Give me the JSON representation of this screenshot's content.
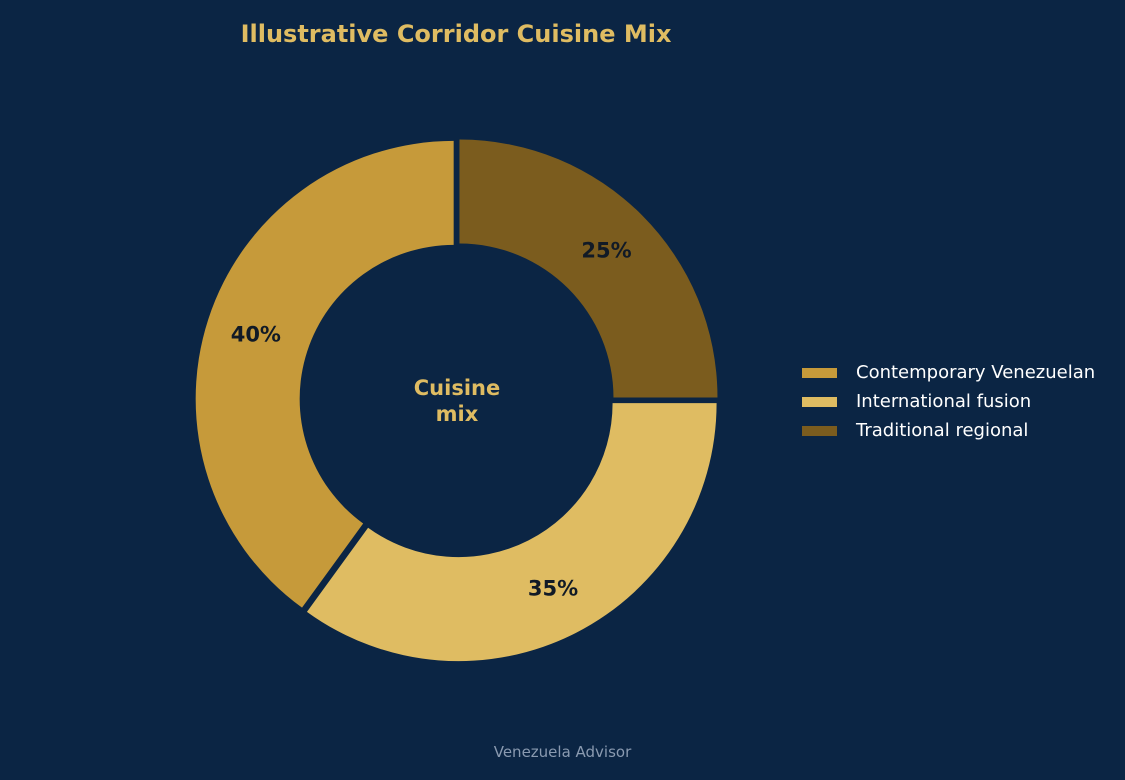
{
  "chart_data": {
    "type": "pie",
    "title": "Illustrative Corridor Cuisine Mix",
    "center_label": "Cuisine mix",
    "center_label_lines": [
      "Cuisine",
      "mix"
    ],
    "donut": true,
    "start": "top, counterclockwise",
    "slices": [
      {
        "label": "Contemporary Venezuelan",
        "value": 40,
        "value_label": "40%",
        "color": "#c69a3a"
      },
      {
        "label": "International fusion",
        "value": 35,
        "value_label": "35%",
        "color": "#dfbc62"
      },
      {
        "label": "Traditional regional",
        "value": 25,
        "value_label": "25%",
        "color": "#7b5c1e"
      }
    ],
    "legend_position": "right"
  },
  "footer": {
    "credit": "Venezuela Advisor"
  },
  "colors": {
    "background": "#0b2544",
    "accent": "#dfbc62",
    "slice_label": "#111a26"
  }
}
